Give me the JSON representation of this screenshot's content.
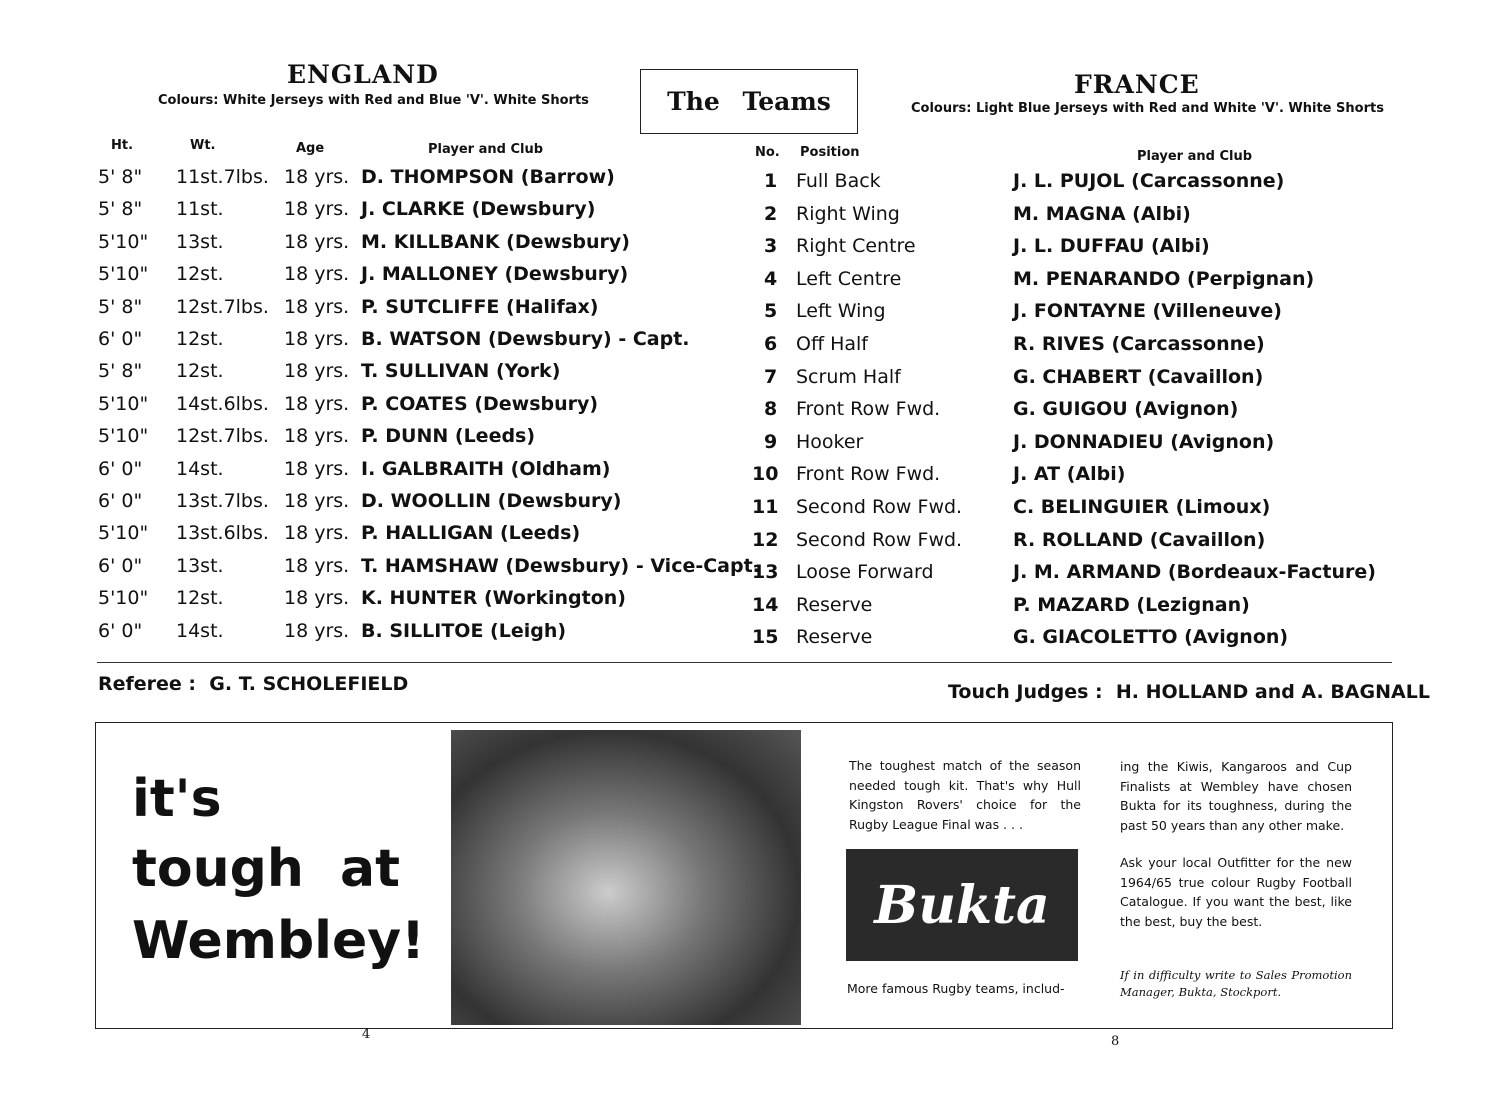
{
  "england": {
    "title": "ENGLAND",
    "colours": "Colours: White Jerseys with Red and Blue 'V'. White Shorts",
    "headers": {
      "ht": "Ht.",
      "wt": "Wt.",
      "age": "Age",
      "player": "Player and Club"
    },
    "players": [
      {
        "ht": "5' 8\"",
        "wt": "11st.7lbs.",
        "age": "18 yrs.",
        "name": "D. THOMPSON (Barrow)"
      },
      {
        "ht": "5' 8\"",
        "wt": "11st.",
        "age": "18 yrs.",
        "name": "J. CLARKE (Dewsbury)"
      },
      {
        "ht": "5'10\"",
        "wt": "13st.",
        "age": "18 yrs.",
        "name": "M. KILLBANK (Dewsbury)"
      },
      {
        "ht": "5'10\"",
        "wt": "12st.",
        "age": "18 yrs.",
        "name": "J. MALLONEY (Dewsbury)"
      },
      {
        "ht": "5' 8\"",
        "wt": "12st.7lbs.",
        "age": "18 yrs.",
        "name": "P. SUTCLIFFE (Halifax)"
      },
      {
        "ht": "6' 0\"",
        "wt": "12st.",
        "age": "18 yrs.",
        "name": "B. WATSON (Dewsbury) - Capt."
      },
      {
        "ht": "5' 8\"",
        "wt": "12st.",
        "age": "18 yrs.",
        "name": "T. SULLIVAN (York)"
      },
      {
        "ht": "5'10\"",
        "wt": "14st.6lbs.",
        "age": "18 yrs.",
        "name": "P. COATES (Dewsbury)"
      },
      {
        "ht": "5'10\"",
        "wt": "12st.7lbs.",
        "age": "18 yrs.",
        "name": "P. DUNN (Leeds)"
      },
      {
        "ht": "6' 0\"",
        "wt": "14st.",
        "age": "18 yrs.",
        "name": "I. GALBRAITH (Oldham)"
      },
      {
        "ht": "6' 0\"",
        "wt": "13st.7lbs.",
        "age": "18 yrs.",
        "name": "D. WOOLLIN (Dewsbury)"
      },
      {
        "ht": "5'10\"",
        "wt": "13st.6lbs.",
        "age": "18 yrs.",
        "name": "P. HALLIGAN (Leeds)"
      },
      {
        "ht": "6' 0\"",
        "wt": "13st.",
        "age": "18 yrs.",
        "name": "T. HAMSHAW (Dewsbury) - Vice-Capt."
      },
      {
        "ht": "5'10\"",
        "wt": "12st.",
        "age": "18 yrs.",
        "name": "K. HUNTER (Workington)"
      },
      {
        "ht": "6' 0\"",
        "wt": "14st.",
        "age": "18 yrs.",
        "name": "B. SILLITOE (Leigh)"
      }
    ]
  },
  "teams_box": "The Teams",
  "france": {
    "title": "FRANCE",
    "colours": "Colours: Light Blue Jerseys with Red and White 'V'. White Shorts",
    "headers": {
      "no": "No.",
      "position": "Position",
      "player": "Player and Club"
    },
    "players": [
      {
        "no": "1",
        "position": "Full Back",
        "name": "J. L. PUJOL (Carcassonne)"
      },
      {
        "no": "2",
        "position": "Right Wing",
        "name": "M. MAGNA (Albi)"
      },
      {
        "no": "3",
        "position": "Right Centre",
        "name": "J. L. DUFFAU (Albi)"
      },
      {
        "no": "4",
        "position": "Left Centre",
        "name": "M. PENARANDO (Perpignan)"
      },
      {
        "no": "5",
        "position": "Left Wing",
        "name": "J. FONTAYNE (Villeneuve)"
      },
      {
        "no": "6",
        "position": "Off Half",
        "name": "R. RIVES (Carcassonne)"
      },
      {
        "no": "7",
        "position": "Scrum Half",
        "name": "G. CHABERT (Cavaillon)"
      },
      {
        "no": "8",
        "position": "Front Row Fwd.",
        "name": "G. GUIGOU (Avignon)"
      },
      {
        "no": "9",
        "position": "Hooker",
        "name": "J. DONNADIEU (Avignon)"
      },
      {
        "no": "10",
        "position": "Front Row Fwd.",
        "name": "J. AT (Albi)"
      },
      {
        "no": "11",
        "position": "Second Row Fwd.",
        "name": "C. BELINGUIER (Limoux)"
      },
      {
        "no": "12",
        "position": "Second Row Fwd.",
        "name": "R. ROLLAND (Cavaillon)"
      },
      {
        "no": "13",
        "position": "Loose Forward",
        "name": "J. M. ARMAND (Bordeaux-Facture)"
      },
      {
        "no": "14",
        "position": "Reserve",
        "name": "P. MAZARD (Lezignan)"
      },
      {
        "no": "15",
        "position": "Reserve",
        "name": "G. GIACOLETTO (Avignon)"
      }
    ]
  },
  "officials": {
    "referee_label": "Referee :",
    "referee": "G. T. SCHOLEFIELD",
    "touch_label": "Touch Judges :",
    "touch": "H. HOLLAND and A. BAGNALL"
  },
  "ad": {
    "slogan": [
      "it's",
      "tough  at",
      "Wembley!"
    ],
    "col1_top": "The toughest match of the season needed tough kit. That's why Hull Kingston Rovers' choice for the Rugby League Final was . . .",
    "logo": "Bukta",
    "col1_bottom": "More famous Rugby teams, includ-",
    "col2_p1": "ing the Kiwis, Kangaroos and Cup Finalists at Wembley have chosen Bukta for its toughness, during the past 50 years than any other make.",
    "col2_p2": "Ask your local Outfitter for the new 1964/65 true colour Rugby Football Catalogue. If you want the best, like the best, buy the best.",
    "col2_p3": "If in difficulty write to Sales Promotion Manager, Bukta, Stockport."
  },
  "page_numbers": [
    "4",
    "8"
  ]
}
